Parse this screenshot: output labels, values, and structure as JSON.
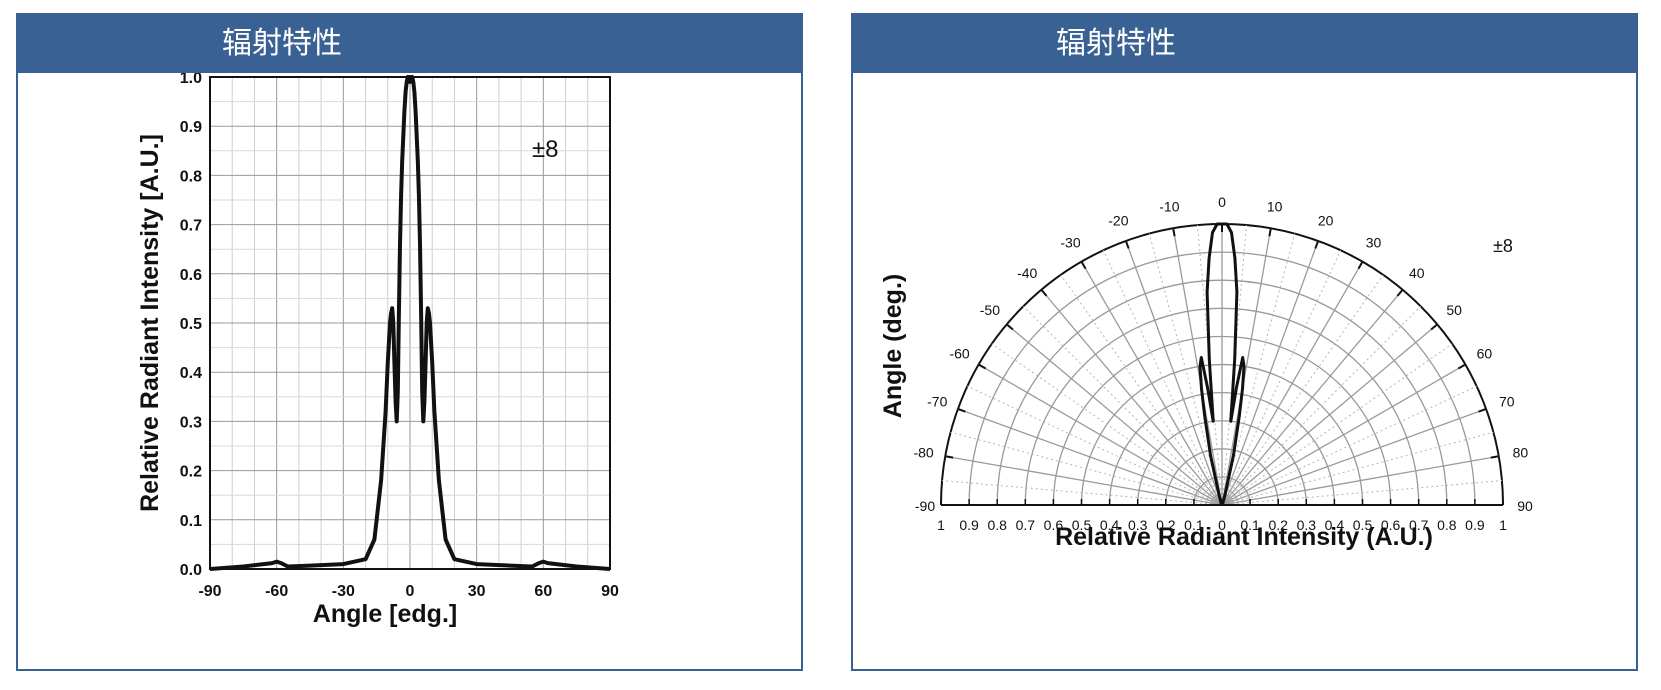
{
  "panels": [
    {
      "title": "辐射特性"
    },
    {
      "title": "辐射特性"
    }
  ],
  "chart_data": [
    {
      "type": "line",
      "annotation": "±8",
      "xlabel": "Angle [edg.]",
      "ylabel": "Relative Radiant Intensity [A.U.]",
      "xlim": [
        -90,
        90
      ],
      "ylim": [
        0,
        1.0
      ],
      "xticks": [
        -90,
        -60,
        -30,
        0,
        30,
        60,
        90
      ],
      "yticks": [
        "0.0",
        "0.1",
        "0.2",
        "0.3",
        "0.4",
        "0.5",
        "0.6",
        "0.7",
        "0.8",
        "0.9",
        "1.0"
      ],
      "grid": true,
      "series": [
        {
          "x": [
            -90,
            -75,
            -62,
            -60,
            -58,
            -55,
            -45,
            -30,
            -20,
            -16,
            -13,
            -11,
            -10,
            -9,
            -8.5,
            -8,
            -7.5,
            -7,
            -6.5,
            -6,
            -5.5,
            -5,
            -4.5,
            -4,
            -3.5,
            -3,
            -2.5,
            -2,
            -1.5,
            -1,
            -0.5,
            0,
            0.5,
            1,
            1.5,
            2,
            2.5,
            3,
            3.5,
            4,
            4.5,
            5,
            5.5,
            6,
            6.5,
            7,
            7.5,
            8,
            8.5,
            9,
            10,
            11,
            13,
            16,
            20,
            30,
            45,
            55,
            58,
            60,
            62,
            75,
            90
          ],
          "y": [
            0.0,
            0.005,
            0.012,
            0.015,
            0.012,
            0.005,
            0.007,
            0.01,
            0.02,
            0.06,
            0.18,
            0.32,
            0.42,
            0.5,
            0.52,
            0.53,
            0.5,
            0.42,
            0.34,
            0.3,
            0.36,
            0.52,
            0.66,
            0.76,
            0.83,
            0.88,
            0.93,
            0.97,
            0.99,
            1.0,
            1.0,
            0.99,
            1.0,
            1.0,
            0.99,
            0.97,
            0.93,
            0.88,
            0.83,
            0.76,
            0.66,
            0.52,
            0.36,
            0.3,
            0.34,
            0.42,
            0.5,
            0.53,
            0.52,
            0.5,
            0.42,
            0.32,
            0.18,
            0.06,
            0.02,
            0.01,
            0.007,
            0.005,
            0.012,
            0.015,
            0.012,
            0.005,
            0.0
          ]
        }
      ]
    },
    {
      "type": "polar",
      "annotation": "±8",
      "xlabel": "Relative Radiant Intensity (A.U.)",
      "ylabel": "Angle (deg.)",
      "angle_ticks": [
        -90,
        -80,
        -70,
        -60,
        -50,
        -40,
        -30,
        -20,
        -10,
        0,
        10,
        20,
        30,
        40,
        50,
        60,
        70,
        80,
        90
      ],
      "radial_ticks_left": [
        "1",
        "0.9",
        "0.8",
        "0.7",
        "0.6",
        "0.5",
        "0.4",
        "0.3",
        "0.2",
        "0.1"
      ],
      "radial_ticks_center": "0",
      "radial_ticks_right": [
        "0.1",
        "0.2",
        "0.3",
        "0.4",
        "0.5",
        "0.6",
        "0.7",
        "0.8",
        "0.9",
        "1"
      ],
      "grid": true,
      "series": [
        {
          "angle": [
            -90,
            -30,
            -16,
            -13,
            -11,
            -10,
            -9,
            -8,
            -7,
            -6,
            -5,
            -4,
            -3,
            -2,
            -1,
            0,
            1,
            2,
            3,
            4,
            5,
            6,
            7,
            8,
            9,
            10,
            11,
            13,
            16,
            30,
            90
          ],
          "r": [
            0,
            0.005,
            0.04,
            0.18,
            0.32,
            0.42,
            0.5,
            0.53,
            0.42,
            0.3,
            0.52,
            0.76,
            0.88,
            0.97,
            1.0,
            1.0,
            1.0,
            0.97,
            0.88,
            0.76,
            0.52,
            0.3,
            0.42,
            0.53,
            0.5,
            0.42,
            0.32,
            0.18,
            0.04,
            0.005,
            0
          ]
        }
      ]
    }
  ]
}
